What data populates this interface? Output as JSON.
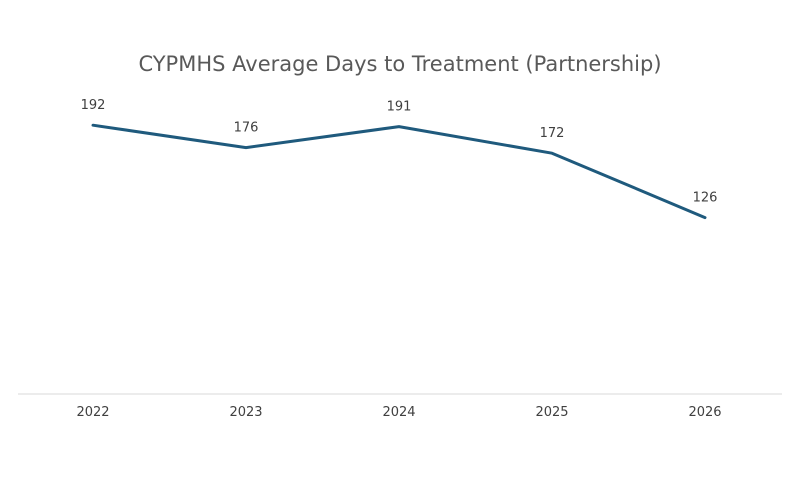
{
  "chart_data": {
    "type": "line",
    "title": "CYPMHS Average Days to Treatment (Partnership)",
    "xlabel": "",
    "ylabel": "",
    "categories": [
      "2022",
      "2023",
      "2024",
      "2025",
      "2026"
    ],
    "series": [
      {
        "values": [
          192,
          176,
          191,
          172,
          126
        ]
      }
    ],
    "ylim": [
      0,
      250
    ],
    "grid": false,
    "legend": "none",
    "colors": {
      "line": "#1f5a7d",
      "axis": "#d9d9d9",
      "text": "#404040"
    }
  }
}
